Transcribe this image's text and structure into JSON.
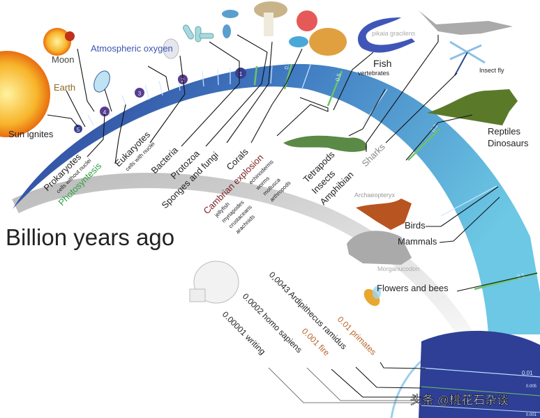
{
  "title": "Billion years ago",
  "colors": {
    "band_dark": "#2e3f95",
    "band_light": "#6cc4e2",
    "green_mark": "#6cc36a",
    "cambrian": "#7a1e22",
    "photosynthesis": "#2ea043",
    "atmospheric": "#3a56b0",
    "earth": "#8a6a2a",
    "fire": "#b8652a"
  },
  "scale_marks": [
    "5",
    "4",
    "3",
    "2",
    "1",
    "0.7",
    "0.5",
    "0.3",
    "0.1",
    "0.01",
    "0.005",
    "0.001"
  ],
  "events": {
    "sun": "Sun ignites",
    "earth": "Earth",
    "moon": "Moon",
    "oxygen": "Atmospheric oxygen",
    "prokaryotes": "Prokaryotes",
    "prokaryotes_sub": "cells without nuclei",
    "photosynthesis": "Photosyntesis",
    "eukaryotes": "Eukaryotes",
    "eukaryotes_sub": "cells with nuclei",
    "bacteria": "Bacteria",
    "protozoa": "Protozoa",
    "sponges": "Sponges and fungi",
    "corals": "Corals",
    "cambrian": "Cambrian explosion",
    "cambrian_a": [
      "echinoderms",
      "worms",
      "mollusca",
      "arthropods"
    ],
    "cambrian_b": [
      "jellyfish",
      "myriapodes",
      "crustaceans",
      "arachnids"
    ],
    "fish": "Fish",
    "fish_sub": "vertebrates",
    "pikaia": "pikaia gracilens",
    "tetrapods": "Tetrapods",
    "insects": "Insects",
    "amphibian": "Amphibian",
    "sharks": "Sharks",
    "insect_fly": "Insect fly",
    "reptiles": "Reptiles",
    "dinosaurs": "Dinosaurs",
    "archaeopteryx": "Archaeopteryx",
    "birds": "Birds",
    "mammals": "Mammals",
    "morganucodon": "Morganucodon",
    "flowers": "Flowers and bees",
    "primates": "0.01 primates",
    "ardipithecus": "0,0043 Ardipithecus ramidus",
    "fire": "0.001 fire",
    "homo": "0.0002 homo sapiens",
    "writing": "0.00001 writing"
  },
  "watermark": "头条 @桃花石杂谈"
}
